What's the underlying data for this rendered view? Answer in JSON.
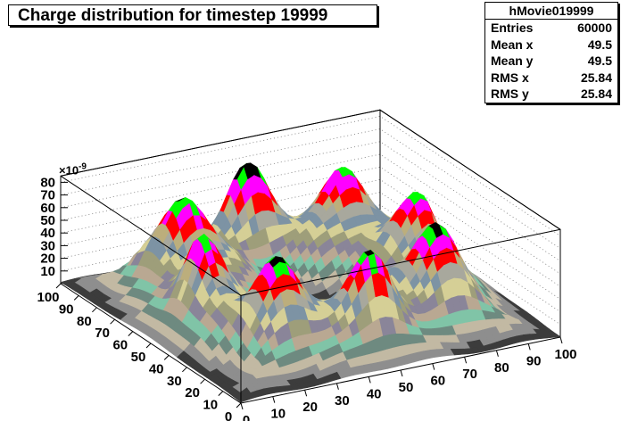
{
  "title": "Charge distribution for timestep 19999",
  "stats": {
    "name": "hMovie019999",
    "rows": [
      {
        "label": "Entries",
        "value": "60000"
      },
      {
        "label": "Mean x",
        "value": "49.5"
      },
      {
        "label": "Mean y",
        "value": "49.5"
      },
      {
        "label": "RMS x",
        "value": "25.84"
      },
      {
        "label": "RMS y",
        "value": "25.84"
      }
    ]
  },
  "chart_data": {
    "type": "surface",
    "title": "Charge distribution for timestep 19999",
    "x_ticks": [
      "0",
      "10",
      "20",
      "30",
      "40",
      "50",
      "60",
      "70",
      "80",
      "90",
      "100"
    ],
    "y_ticks": [
      "0",
      "10",
      "20",
      "30",
      "40",
      "50",
      "60",
      "70",
      "80",
      "90",
      "100"
    ],
    "z_ticks": [
      "10",
      "20",
      "30",
      "40",
      "50",
      "60",
      "70",
      "80"
    ],
    "z_exponent": "×10",
    "z_exponent_power": "-9",
    "xlim": [
      0,
      100
    ],
    "ylim": [
      0,
      100
    ],
    "zlim": [
      0,
      85
    ],
    "peaks": [
      {
        "x": 25,
        "y": 25,
        "z": 78
      },
      {
        "x": 50,
        "y": 15,
        "z": 80
      },
      {
        "x": 75,
        "y": 25,
        "z": 80
      },
      {
        "x": 85,
        "y": 50,
        "z": 78
      },
      {
        "x": 75,
        "y": 75,
        "z": 80
      },
      {
        "x": 50,
        "y": 85,
        "z": 80
      },
      {
        "x": 25,
        "y": 75,
        "z": 78
      },
      {
        "x": 15,
        "y": 50,
        "z": 80
      }
    ],
    "palette": [
      "#3c3c3c",
      "#8e8e8e",
      "#c2b9a3",
      "#6e8a80",
      "#80c4a7",
      "#b9a892",
      "#8a8599",
      "#9e9e7a",
      "#d5cf96",
      "#7d93a4",
      "#a8a89d",
      "#bcae7c",
      "#ff0000",
      "#ff00ff",
      "#00ff00",
      "#000000"
    ],
    "grid": true
  }
}
